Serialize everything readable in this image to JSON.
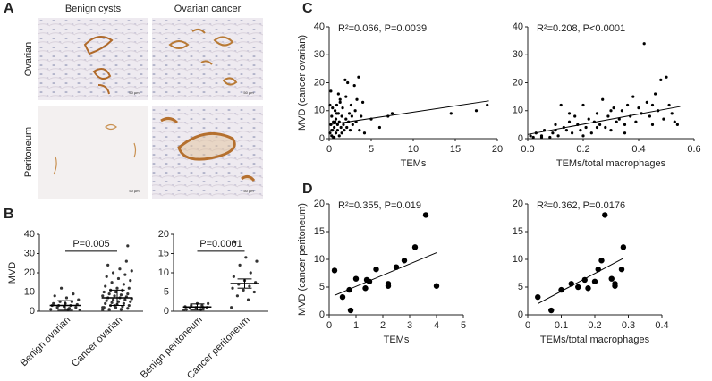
{
  "panels": [
    "A",
    "B",
    "C",
    "D"
  ],
  "panel_a": {
    "column_titles": [
      "Benign cysts",
      "Ovarian cancer"
    ],
    "row_titles": [
      "Ovarian",
      "Peritoneum"
    ],
    "scale_bar": "50 µm"
  },
  "chart_data": [
    {
      "type": "dotplot",
      "ylabel": "MVD",
      "categories": [
        "Benign ovarian",
        "Cancer ovarian"
      ],
      "annotation": "P=0.005",
      "color": "#333333",
      "points": [
        [
          1,
          1.5,
          2,
          2,
          2.5,
          3,
          3,
          3,
          3.5,
          4,
          4,
          5,
          5,
          6,
          7,
          8,
          9,
          12,
          0.5,
          1
        ],
        [
          0.5,
          1,
          1,
          1.5,
          2,
          2,
          2.5,
          3,
          3,
          3.5,
          4,
          4,
          4.5,
          5,
          5,
          5.5,
          6,
          6,
          6.5,
          7,
          7,
          7.5,
          8,
          8,
          8.5,
          9,
          9,
          10,
          10,
          11,
          11,
          12,
          12,
          13,
          14,
          15,
          16,
          17,
          18,
          19,
          20,
          21,
          22,
          24,
          26,
          3,
          2,
          1,
          0.5,
          34
        ]
      ],
      "means": [
        3,
        7
      ],
      "errors": [
        2.5,
        4
      ],
      "ylim": [
        0,
        40
      ],
      "yticks": [
        0,
        10,
        20,
        30,
        40
      ]
    },
    {
      "type": "dotplot",
      "categories": [
        "Benign peritoneum",
        "Cancer peritoneum"
      ],
      "annotation": "P=0.0001",
      "color": "#333333",
      "points": [
        [
          0.3,
          0.5,
          0.8,
          1,
          1,
          1.2,
          1.5,
          1.5,
          2,
          2,
          0.5,
          1
        ],
        [
          1,
          3,
          4,
          5,
          5.5,
          6,
          6.5,
          7,
          7.5,
          8,
          9,
          10,
          12,
          13,
          14,
          18
        ]
      ],
      "means": [
        1.1,
        7.2
      ],
      "errors": [
        0.8,
        1.2
      ],
      "ylim": [
        0,
        20
      ],
      "yticks": [
        0,
        5,
        10,
        15,
        20
      ]
    },
    {
      "type": "scatter",
      "xlabel": "TEMs",
      "ylabel": "MVD (cancer ovarian)",
      "annotation": "R²=0.066, P=0.0039",
      "color": "#000000",
      "marker_size": 1.6,
      "x": [
        0.1,
        0.2,
        0.3,
        0.3,
        0.4,
        0.5,
        0.5,
        0.6,
        0.7,
        0.8,
        0.8,
        0.9,
        1.0,
        1.0,
        1.1,
        1.2,
        1.2,
        1.3,
        1.4,
        1.5,
        1.5,
        1.6,
        1.7,
        1.8,
        1.9,
        2.0,
        2.0,
        2.1,
        2.2,
        2.3,
        2.4,
        2.5,
        2.6,
        2.7,
        2.8,
        3.0,
        3.1,
        3.2,
        3.3,
        3.5,
        3.6,
        3.8,
        4.0,
        4.2,
        0.2,
        0.4,
        0.6,
        0.9,
        1.1,
        1.3,
        0.1,
        0.3,
        0.7,
        5.0,
        6.0,
        7.0,
        7.5,
        14.5,
        17.5,
        18.8
      ],
      "y": [
        2,
        5,
        1,
        8,
        3,
        6,
        0.5,
        4,
        10,
        2,
        7,
        12,
        3,
        5,
        9,
        1,
        6,
        14,
        4,
        8,
        2,
        11,
        5,
        3,
        21,
        7,
        15,
        4,
        20,
        6,
        9,
        3,
        12,
        8,
        5,
        19,
        10,
        6,
        14,
        22,
        3,
        8,
        13,
        2,
        17,
        11,
        0.5,
        9,
        16,
        13,
        12,
        3,
        6,
        7,
        4,
        8,
        9,
        9,
        10,
        12
      ],
      "fit": {
        "x": [
          0,
          19
        ],
        "y": [
          5,
          13.5
        ]
      },
      "xlim": [
        0,
        20
      ],
      "xticks": [
        0,
        5,
        10,
        15,
        20
      ],
      "ylim": [
        0,
        40
      ],
      "yticks": [
        0,
        10,
        20,
        30,
        40
      ]
    },
    {
      "type": "scatter",
      "xlabel": "TEMs/total macrophages",
      "annotation": "R²=0.208, P<0.0001",
      "color": "#000000",
      "marker_size": 1.6,
      "x": [
        0.01,
        0.02,
        0.03,
        0.05,
        0.06,
        0.08,
        0.09,
        0.1,
        0.11,
        0.12,
        0.13,
        0.14,
        0.15,
        0.16,
        0.17,
        0.18,
        0.19,
        0.2,
        0.21,
        0.22,
        0.23,
        0.24,
        0.25,
        0.26,
        0.27,
        0.28,
        0.29,
        0.3,
        0.31,
        0.32,
        0.33,
        0.34,
        0.35,
        0.36,
        0.37,
        0.38,
        0.39,
        0.4,
        0.41,
        0.42,
        0.43,
        0.44,
        0.45,
        0.46,
        0.47,
        0.48,
        0.49,
        0.5,
        0.51,
        0.52,
        0.53,
        0.54,
        0.1,
        0.2,
        0.3,
        0.15,
        0.25,
        0.35,
        0.45,
        0.05
      ],
      "y": [
        1,
        0.5,
        2,
        1,
        3,
        0.5,
        2,
        5,
        1,
        12,
        4,
        3,
        6,
        2,
        8,
        5,
        3,
        12,
        4,
        7,
        2,
        6,
        9,
        5,
        14,
        4,
        8,
        3,
        11,
        6,
        7,
        10,
        5,
        12,
        8,
        15,
        6,
        11,
        9,
        34,
        13,
        8,
        12,
        16,
        10,
        21,
        7,
        22,
        12,
        9,
        6,
        5,
        3,
        1,
        10,
        9,
        4,
        2,
        5,
        0.5
      ],
      "fit": {
        "x": [
          0,
          0.55
        ],
        "y": [
          1.5,
          11.5
        ]
      },
      "xlim": [
        0,
        0.6
      ],
      "xticks": [
        {
          "value": 0,
          "label": "0.0"
        },
        0.2,
        0.4,
        0.6
      ],
      "ylim": [
        0,
        40
      ],
      "yticks": [
        0,
        10,
        20,
        30,
        40
      ]
    },
    {
      "type": "scatter",
      "xlabel": "TEMs",
      "ylabel": "MVD (cancer peritoneum)",
      "annotation": "R²=0.355, P=0.019",
      "color": "#000000",
      "marker_size": 3.2,
      "x": [
        0.2,
        0.5,
        0.75,
        0.8,
        1,
        1.35,
        1.4,
        1.5,
        1.75,
        2.2,
        2.2,
        2.5,
        2.8,
        3.2,
        3.6,
        4
      ],
      "y": [
        8,
        3.2,
        4.5,
        0.8,
        6.5,
        4.8,
        6.3,
        6,
        8.2,
        5.6,
        5.2,
        8.6,
        9.8,
        12.2,
        18,
        5.2
      ],
      "fit": {
        "x": [
          0.2,
          4
        ],
        "y": [
          3.5,
          11.2
        ]
      },
      "xlim": [
        0,
        5
      ],
      "xticks": [
        0,
        1,
        2,
        3,
        4,
        5
      ],
      "ylim": [
        0,
        20
      ],
      "yticks": [
        0,
        5,
        10,
        15,
        20
      ]
    },
    {
      "type": "scatter",
      "xlabel": "TEMs/total macrophages",
      "annotation": "R²=0.362, P=0.0176",
      "color": "#000000",
      "marker_size": 3.2,
      "x": [
        0.03,
        0.07,
        0.1,
        0.13,
        0.15,
        0.17,
        0.18,
        0.2,
        0.21,
        0.22,
        0.23,
        0.25,
        0.26,
        0.26,
        0.28,
        0.285
      ],
      "y": [
        3.2,
        0.8,
        4.5,
        5.6,
        5,
        6.3,
        4.8,
        6,
        8.2,
        9.8,
        18,
        6.5,
        5.2,
        5.6,
        8.2,
        12.2
      ],
      "fit": {
        "x": [
          0.03,
          0.285
        ],
        "y": [
          2,
          10.2
        ]
      },
      "xlim": [
        0,
        0.4
      ],
      "xticks": [
        0,
        0.1,
        0.2,
        0.3,
        0.4
      ],
      "ylim": [
        0,
        20
      ],
      "yticks": [
        0,
        5,
        10,
        15,
        20
      ]
    }
  ]
}
